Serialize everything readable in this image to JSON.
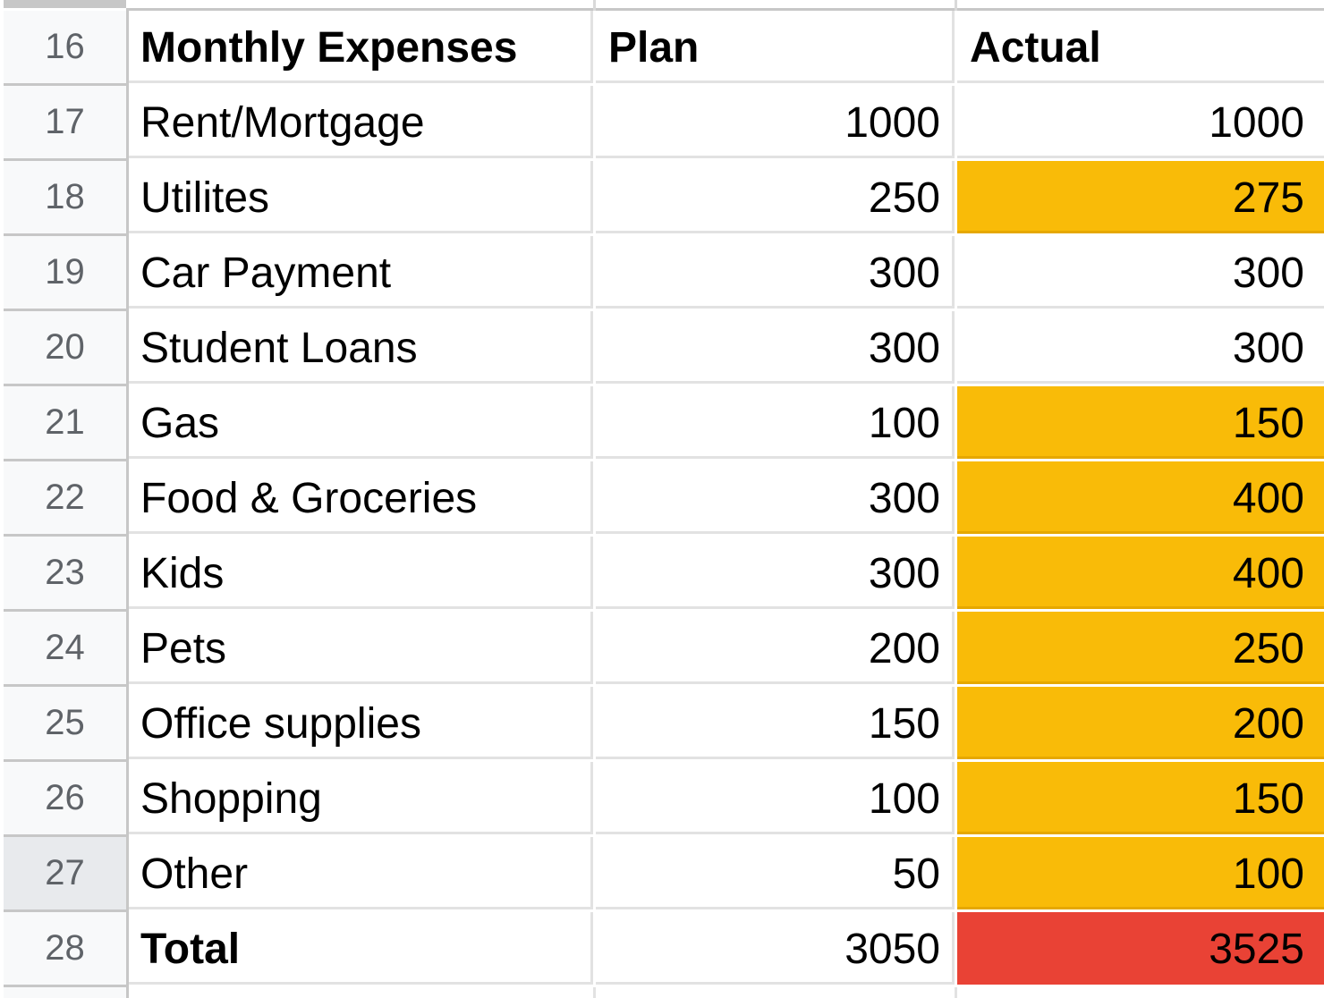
{
  "colors": {
    "over_budget": "#f9bb08",
    "total_over_budget": "#e94235",
    "row_header_bg": "#f8f9fa",
    "row_header_selected_bg": "#e8eaed",
    "gridline": "#e2e2e2"
  },
  "header_row": {
    "row_number": "16",
    "category": "Monthly Expenses",
    "plan": "Plan",
    "actual": "Actual"
  },
  "expense_rows": [
    {
      "row_number": "17",
      "category": "Rent/Mortgage",
      "plan": "1000",
      "actual": "1000",
      "actual_highlight": "none"
    },
    {
      "row_number": "18",
      "category": "Utilites",
      "plan": "250",
      "actual": "275",
      "actual_highlight": "over_budget"
    },
    {
      "row_number": "19",
      "category": "Car Payment",
      "plan": "300",
      "actual": "300",
      "actual_highlight": "none"
    },
    {
      "row_number": "20",
      "category": "Student Loans",
      "plan": "300",
      "actual": "300",
      "actual_highlight": "none"
    },
    {
      "row_number": "21",
      "category": "Gas",
      "plan": "100",
      "actual": "150",
      "actual_highlight": "over_budget"
    },
    {
      "row_number": "22",
      "category": "Food & Groceries",
      "plan": "300",
      "actual": "400",
      "actual_highlight": "over_budget"
    },
    {
      "row_number": "23",
      "category": "Kids",
      "plan": "300",
      "actual": "400",
      "actual_highlight": "over_budget"
    },
    {
      "row_number": "24",
      "category": "Pets",
      "plan": "200",
      "actual": "250",
      "actual_highlight": "over_budget"
    },
    {
      "row_number": "25",
      "category": "Office supplies",
      "plan": "150",
      "actual": "200",
      "actual_highlight": "over_budget"
    },
    {
      "row_number": "26",
      "category": "Shopping",
      "plan": "100",
      "actual": "150",
      "actual_highlight": "over_budget"
    },
    {
      "row_number": "27",
      "category": "Other",
      "plan": "50",
      "actual": "100",
      "actual_highlight": "over_budget",
      "row_selected": true
    }
  ],
  "total_row": {
    "row_number": "28",
    "category": "Total",
    "plan": "3050",
    "actual": "3525",
    "actual_highlight": "total_over_budget"
  }
}
